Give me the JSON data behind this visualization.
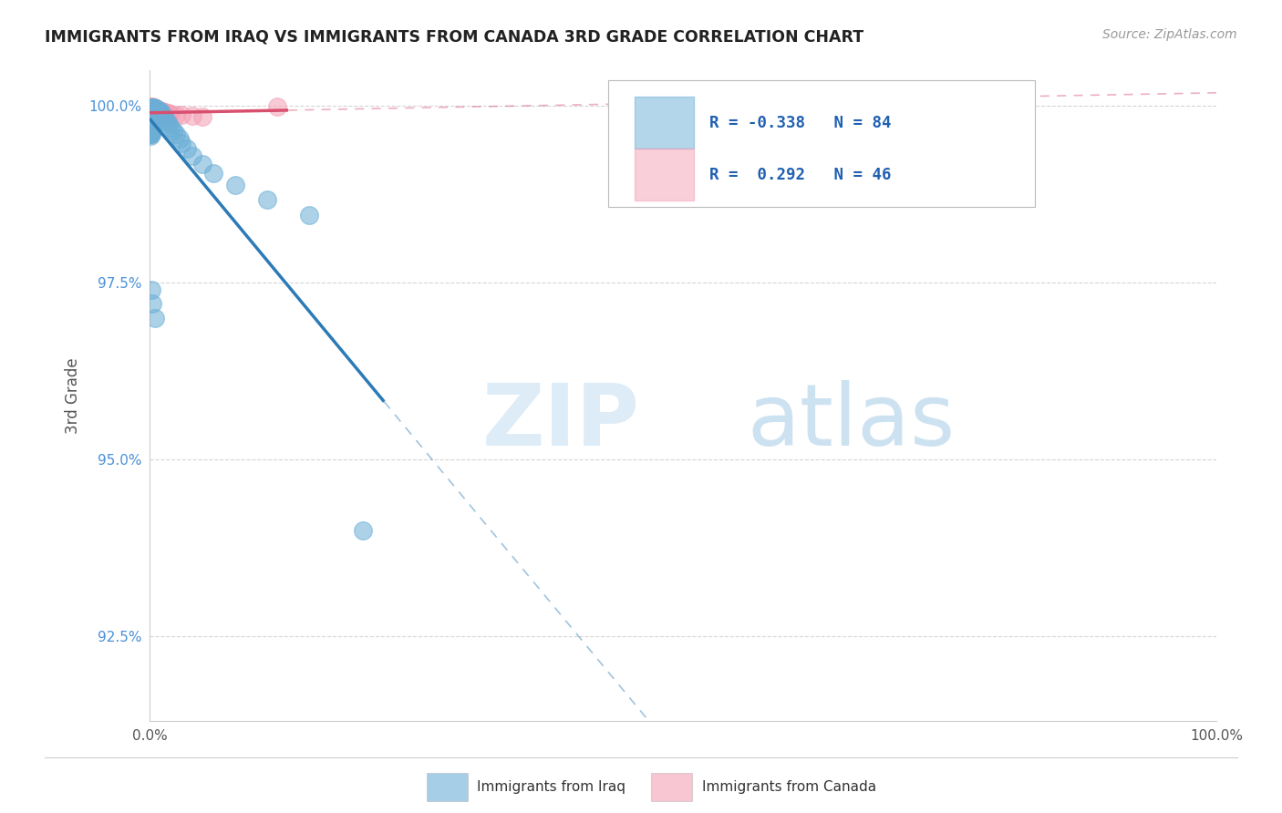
{
  "title": "IMMIGRANTS FROM IRAQ VS IMMIGRANTS FROM CANADA 3RD GRADE CORRELATION CHART",
  "source_text": "Source: ZipAtlas.com",
  "ylabel": "3rd Grade",
  "xlim": [
    0.0,
    1.0
  ],
  "ylim": [
    0.913,
    1.005
  ],
  "ytick_labels": [
    "92.5%",
    "95.0%",
    "97.5%",
    "100.0%"
  ],
  "ytick_values": [
    0.925,
    0.95,
    0.975,
    1.0
  ],
  "xtick_labels": [
    "0.0%",
    "100.0%"
  ],
  "xtick_values": [
    0.0,
    1.0
  ],
  "iraq_color": "#6baed6",
  "canada_color": "#f4a0b5",
  "iraq_line_color": "#2c7bb6",
  "canada_line_color": "#d94f6e",
  "iraq_R": -0.338,
  "iraq_N": 84,
  "canada_R": 0.292,
  "canada_N": 46,
  "legend_iraq_label": "Immigrants from Iraq",
  "legend_canada_label": "Immigrants from Canada",
  "watermark_zip": "ZIP",
  "watermark_atlas": "atlas",
  "background_color": "#ffffff",
  "grid_color": "#cccccc",
  "title_color": "#222222",
  "axis_label_color": "#555555",
  "iraq_scatter_x": [
    0.001,
    0.001,
    0.001,
    0.001,
    0.001,
    0.001,
    0.001,
    0.001,
    0.001,
    0.001,
    0.001,
    0.001,
    0.001,
    0.001,
    0.001,
    0.001,
    0.001,
    0.001,
    0.001,
    0.001,
    0.002,
    0.002,
    0.002,
    0.002,
    0.002,
    0.002,
    0.002,
    0.002,
    0.002,
    0.002,
    0.002,
    0.002,
    0.002,
    0.002,
    0.003,
    0.003,
    0.003,
    0.003,
    0.003,
    0.003,
    0.003,
    0.003,
    0.003,
    0.004,
    0.004,
    0.004,
    0.004,
    0.004,
    0.005,
    0.005,
    0.005,
    0.005,
    0.006,
    0.006,
    0.006,
    0.007,
    0.007,
    0.008,
    0.008,
    0.009,
    0.01,
    0.01,
    0.011,
    0.012,
    0.013,
    0.015,
    0.016,
    0.018,
    0.02,
    0.022,
    0.025,
    0.028,
    0.03,
    0.035,
    0.04,
    0.05,
    0.06,
    0.08,
    0.11,
    0.15,
    0.002,
    0.003,
    0.005,
    0.2
  ],
  "iraq_scatter_y": [
    0.9998,
    0.9996,
    0.9994,
    0.9992,
    0.999,
    0.9988,
    0.9985,
    0.9982,
    0.998,
    0.9978,
    0.9976,
    0.9974,
    0.9972,
    0.997,
    0.9968,
    0.9966,
    0.9964,
    0.9962,
    0.996,
    0.9958,
    0.9998,
    0.9995,
    0.9992,
    0.9989,
    0.9986,
    0.9983,
    0.998,
    0.9977,
    0.9974,
    0.9971,
    0.9968,
    0.9965,
    0.9962,
    0.996,
    0.9998,
    0.9994,
    0.999,
    0.9986,
    0.9982,
    0.9978,
    0.9974,
    0.997,
    0.9966,
    0.9998,
    0.9993,
    0.9988,
    0.9983,
    0.9978,
    0.9997,
    0.9991,
    0.9985,
    0.9979,
    0.9996,
    0.9989,
    0.9982,
    0.9995,
    0.9988,
    0.9994,
    0.9986,
    0.9993,
    0.9992,
    0.9984,
    0.999,
    0.9988,
    0.9985,
    0.9982,
    0.9978,
    0.9974,
    0.997,
    0.9966,
    0.996,
    0.9954,
    0.9948,
    0.994,
    0.993,
    0.9918,
    0.9905,
    0.9888,
    0.9868,
    0.9845,
    0.974,
    0.972,
    0.97,
    0.94
  ],
  "canada_scatter_x": [
    0.001,
    0.001,
    0.001,
    0.001,
    0.001,
    0.001,
    0.001,
    0.001,
    0.001,
    0.002,
    0.002,
    0.002,
    0.002,
    0.002,
    0.002,
    0.002,
    0.002,
    0.003,
    0.003,
    0.003,
    0.003,
    0.003,
    0.003,
    0.004,
    0.004,
    0.004,
    0.004,
    0.005,
    0.005,
    0.005,
    0.006,
    0.006,
    0.007,
    0.007,
    0.008,
    0.008,
    0.01,
    0.012,
    0.015,
    0.018,
    0.02,
    0.025,
    0.03,
    0.04,
    0.05,
    0.12
  ],
  "canada_scatter_y": [
    0.9999,
    0.9997,
    0.9995,
    0.9993,
    0.9991,
    0.9989,
    0.9987,
    0.9985,
    0.9983,
    0.9999,
    0.9996,
    0.9993,
    0.999,
    0.9987,
    0.9984,
    0.9981,
    0.9978,
    0.9999,
    0.9995,
    0.9991,
    0.9987,
    0.9983,
    0.9979,
    0.9998,
    0.9994,
    0.999,
    0.9986,
    0.9997,
    0.9993,
    0.9989,
    0.9996,
    0.9992,
    0.9995,
    0.9991,
    0.9994,
    0.999,
    0.9993,
    0.9992,
    0.9991,
    0.999,
    0.9989,
    0.9988,
    0.9987,
    0.9986,
    0.9985,
    0.9999
  ],
  "iraq_trend_x0": 0.0,
  "iraq_trend_x_solid_end": 0.22,
  "canada_trend_x0": 0.0,
  "canada_trend_x_solid_end": 0.13
}
